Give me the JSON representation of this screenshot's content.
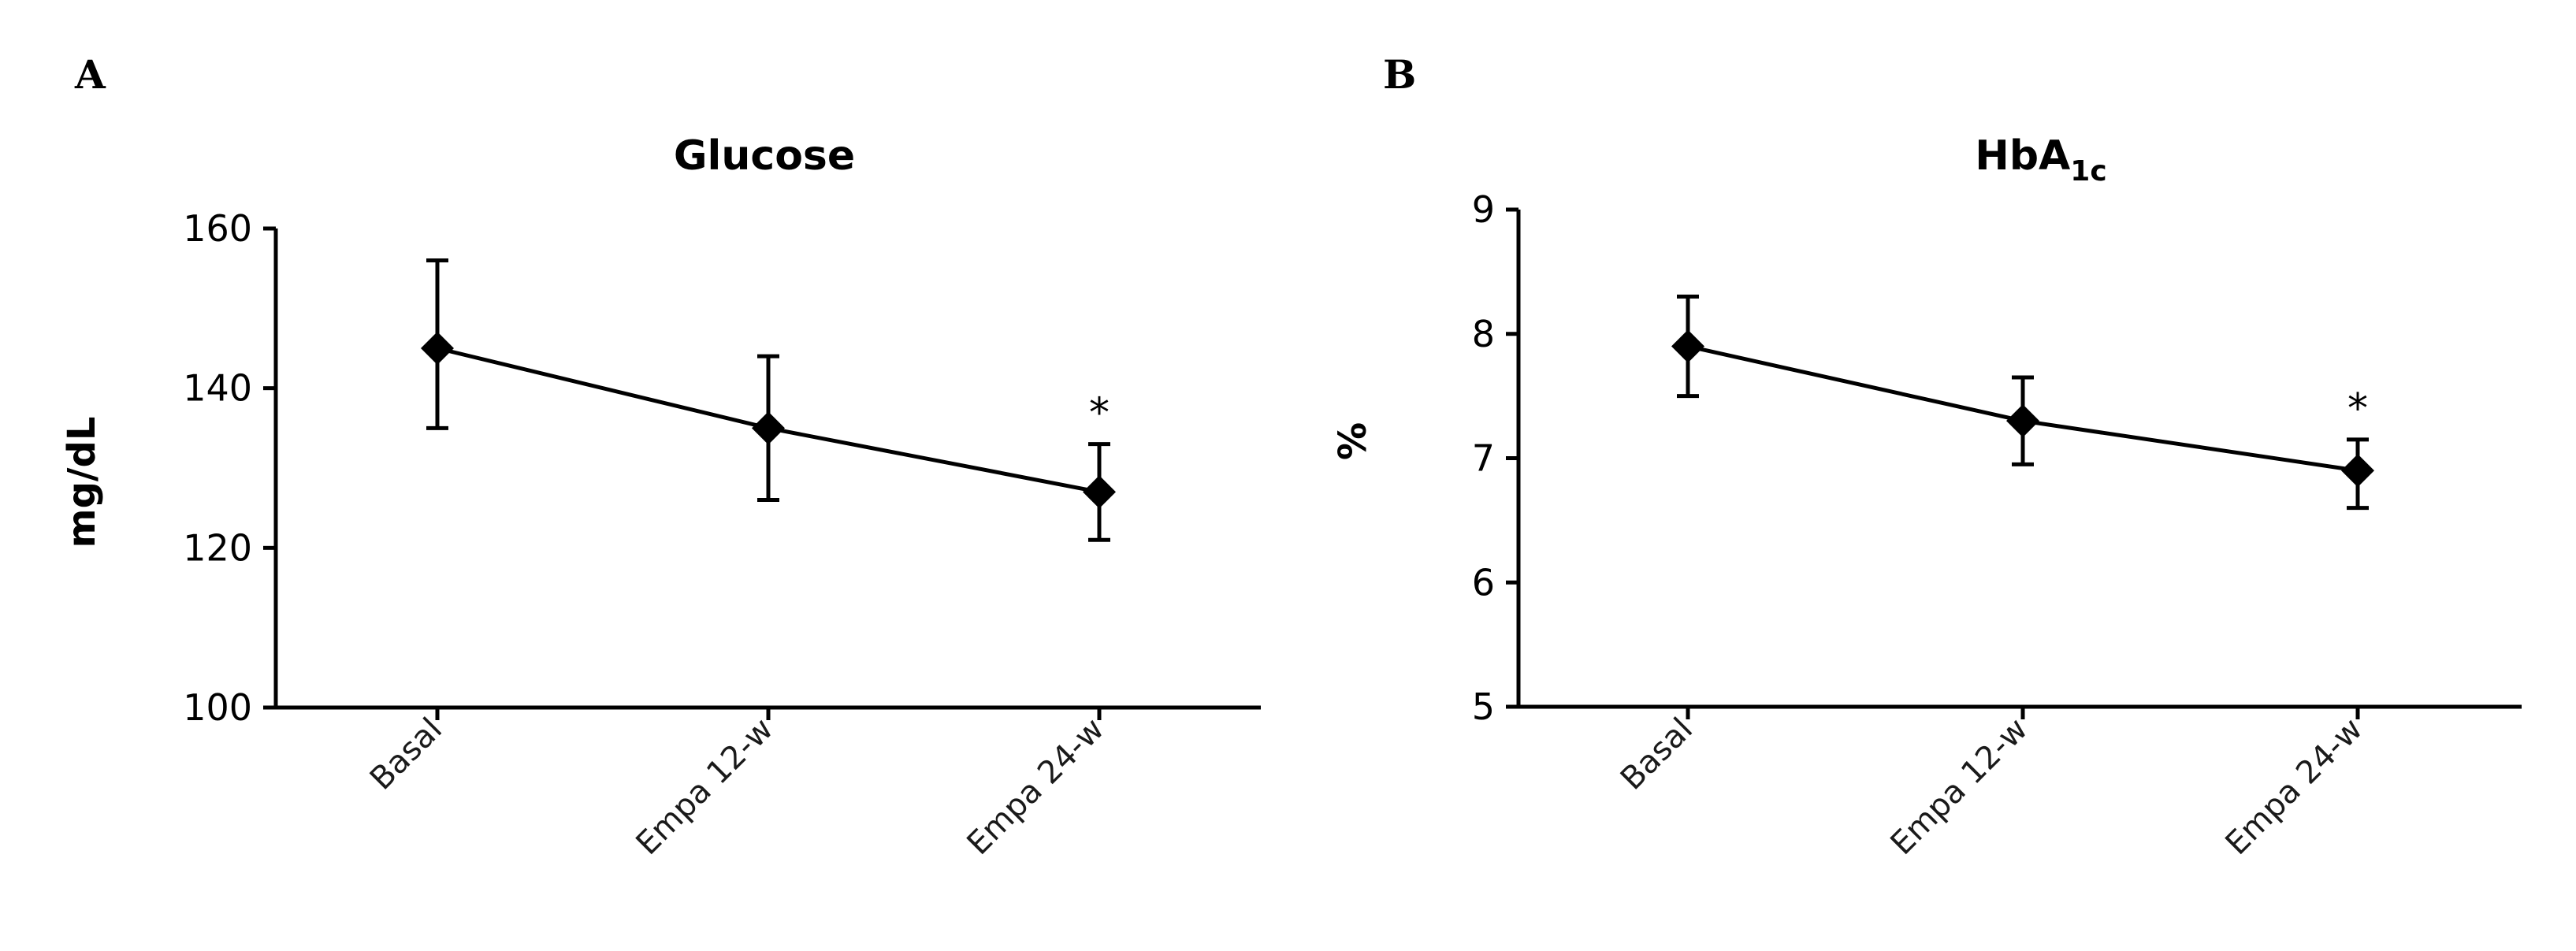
{
  "colors": {
    "series": "#000000",
    "axis": "#000000",
    "background": "#ffffff"
  },
  "chart_data": [
    {
      "type": "line",
      "panel": "A",
      "title": "Glucose",
      "title_sub": "",
      "xlabel": "",
      "ylabel": "mg/dL",
      "categories": [
        "Basal",
        "Empa 12-w",
        "Empa 24-w"
      ],
      "ylim": [
        100,
        160
      ],
      "yticks": [
        100,
        120,
        140,
        160
      ],
      "grid": false,
      "legend": "none",
      "series": [
        {
          "values": [
            145,
            135,
            127
          ],
          "error_upper": [
            156,
            144,
            133
          ],
          "error_lower": [
            135,
            126,
            121
          ],
          "marker": "diamond"
        }
      ],
      "annotations": [
        {
          "category": "Empa 24-w",
          "text": "*"
        }
      ]
    },
    {
      "type": "line",
      "panel": "B",
      "title": "HbA",
      "title_sub": "1c",
      "xlabel": "",
      "ylabel": "%",
      "categories": [
        "Basal",
        "Empa 12-w",
        "Empa 24-w"
      ],
      "ylim": [
        5,
        9
      ],
      "yticks": [
        5,
        6,
        7,
        8,
        9
      ],
      "grid": false,
      "legend": "none",
      "series": [
        {
          "values": [
            7.9,
            7.3,
            6.9
          ],
          "error_upper": [
            8.3,
            7.65,
            7.15
          ],
          "error_lower": [
            7.5,
            6.95,
            6.6
          ],
          "marker": "diamond"
        }
      ],
      "annotations": [
        {
          "category": "Empa 24-w",
          "text": "*"
        }
      ]
    }
  ]
}
